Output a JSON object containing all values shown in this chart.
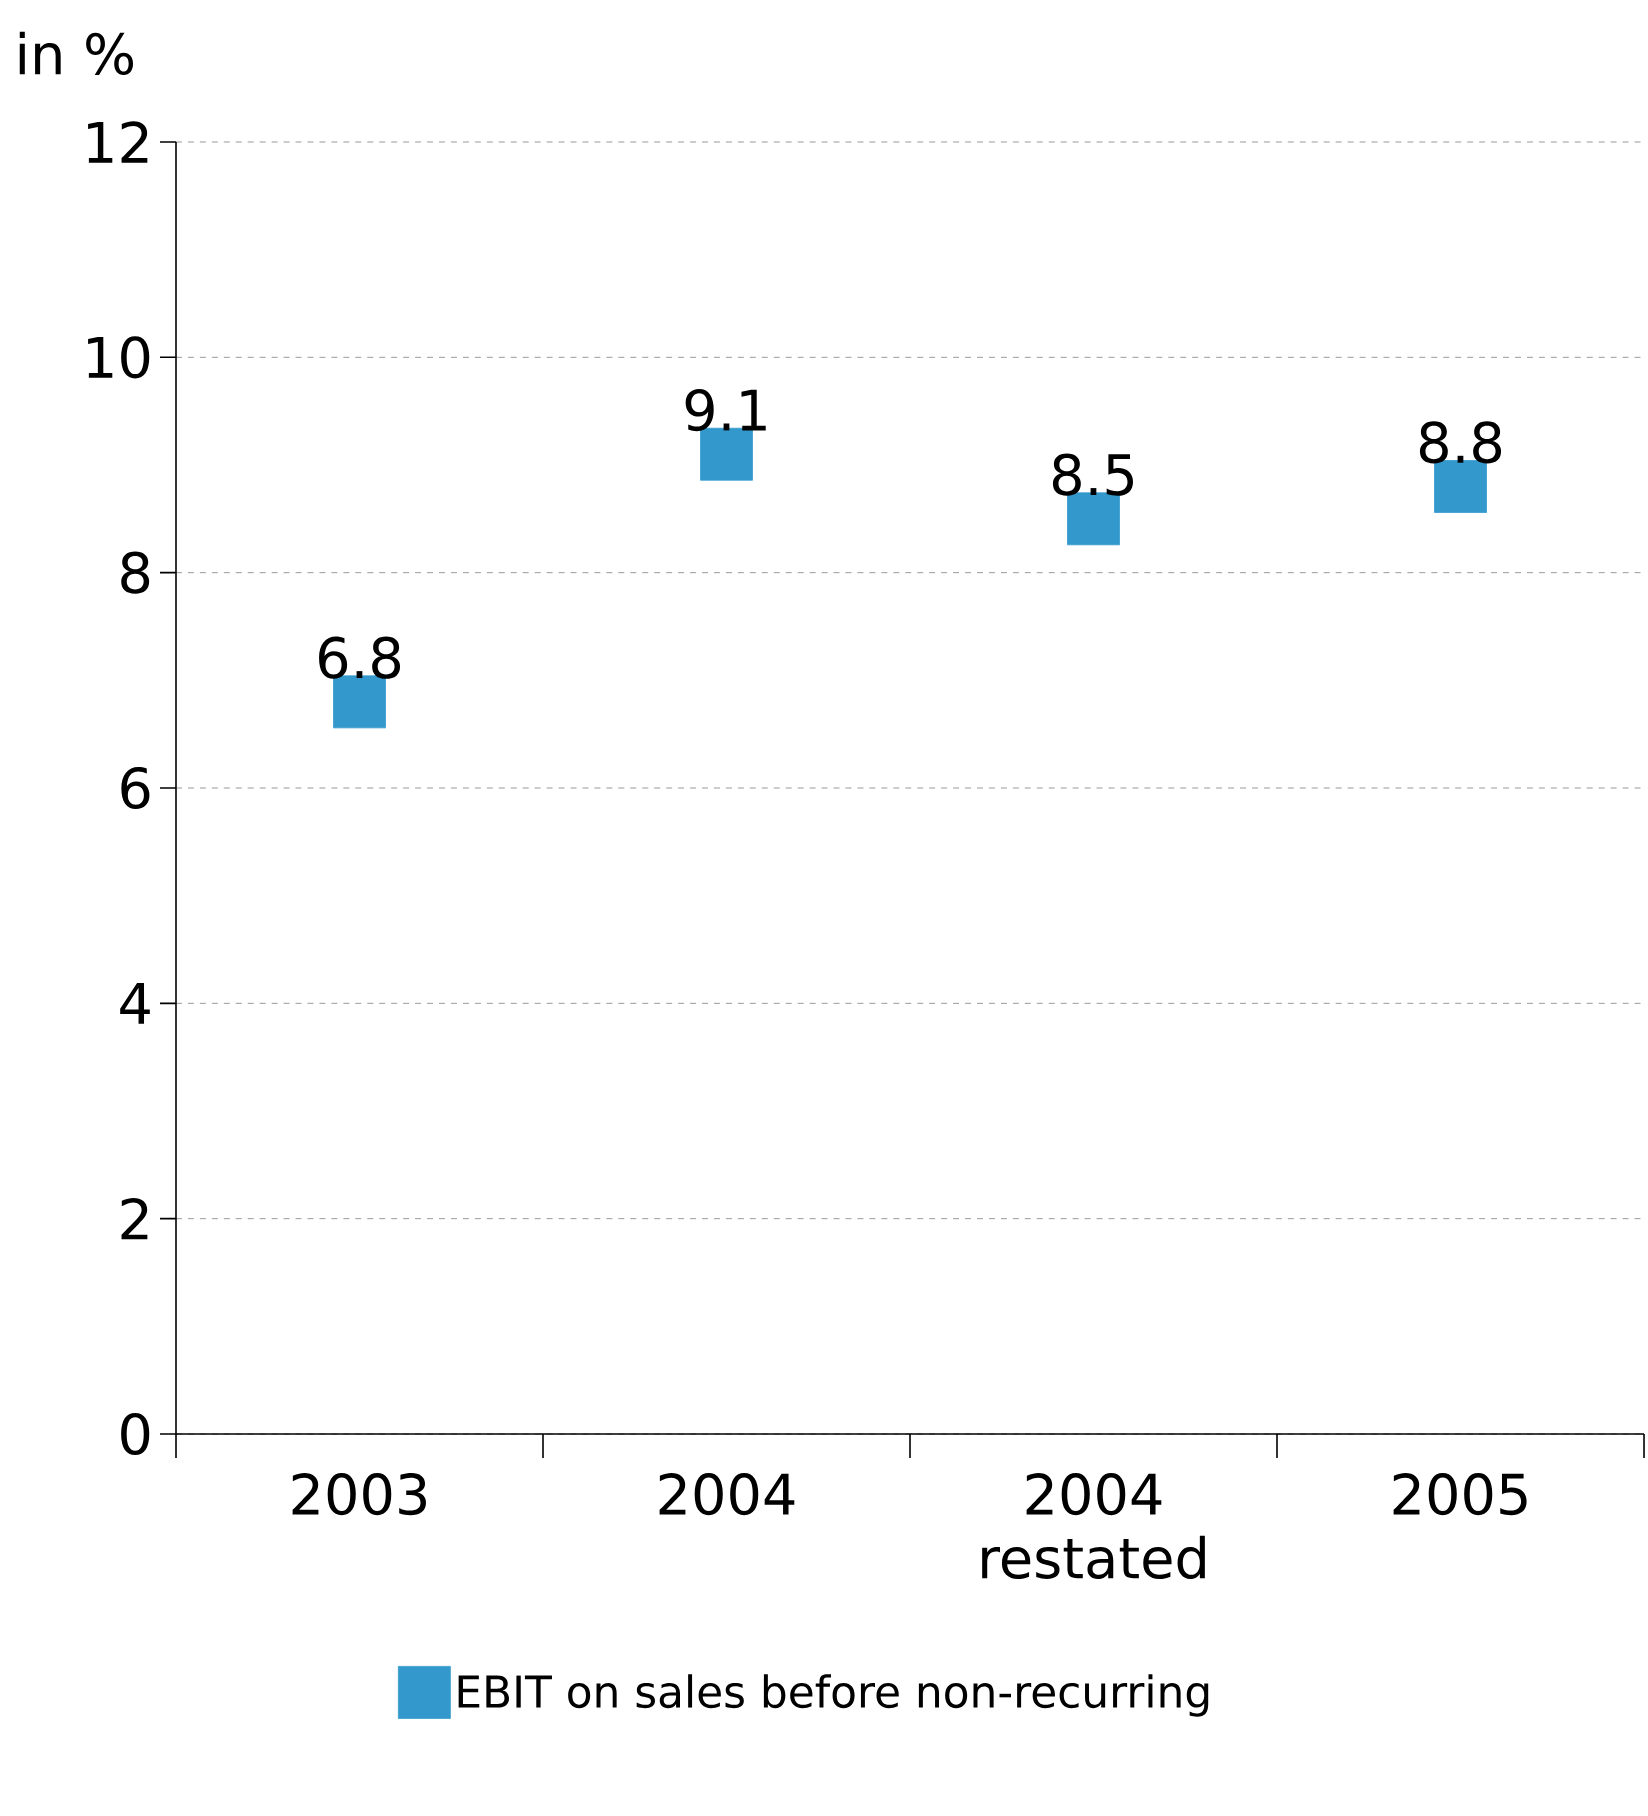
{
  "chart_data": {
    "type": "scatter",
    "ylabel": "in %",
    "categories": [
      "2003",
      "2004",
      "2004 restated",
      "2005"
    ],
    "series": [
      {
        "name": "EBIT on sales before non-recurring",
        "color": "#3399cc",
        "values": [
          6.8,
          9.1,
          8.5,
          8.8
        ]
      }
    ],
    "ylim": [
      0,
      12
    ],
    "yticks": [
      0,
      2,
      4,
      6,
      8,
      10,
      12
    ],
    "grid": "y",
    "legend": "bottom",
    "marker": "square",
    "data_labels": true
  }
}
